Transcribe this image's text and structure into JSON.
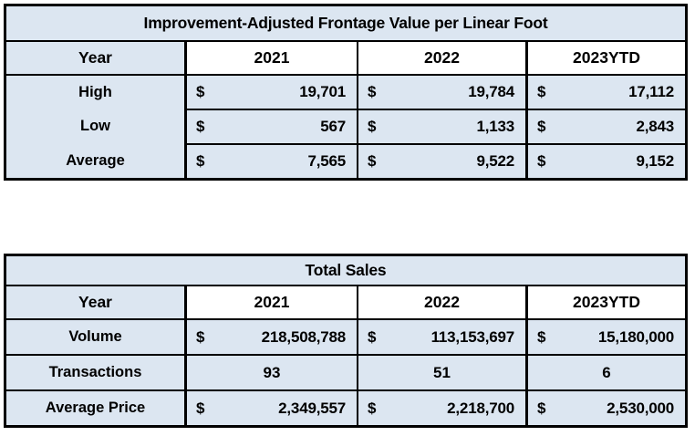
{
  "colors": {
    "cell_fill": "#dce6f1",
    "year_fill": "#ffffff",
    "border_color": "#000000",
    "text_color": "#000000",
    "page_bg": "#ffffff"
  },
  "tables": [
    {
      "title": "Improvement-Adjusted Frontage Value per Linear Foot",
      "columns": [
        "Year",
        "2021",
        "2022",
        "2023YTD"
      ],
      "rows": [
        {
          "label": "High",
          "cells": [
            {
              "prefix": "$",
              "value": "19,701"
            },
            {
              "prefix": "$",
              "value": "19,784"
            },
            {
              "prefix": "$",
              "value": "17,112"
            }
          ]
        },
        {
          "label": "Low",
          "cells": [
            {
              "prefix": "$",
              "value": "567"
            },
            {
              "prefix": "$",
              "value": "1,133"
            },
            {
              "prefix": "$",
              "value": "2,843"
            }
          ]
        },
        {
          "label": "Average",
          "cells": [
            {
              "prefix": "$",
              "value": "7,565"
            },
            {
              "prefix": "$",
              "value": "9,522"
            },
            {
              "prefix": "$",
              "value": "9,152"
            }
          ]
        }
      ]
    },
    {
      "title": "Total Sales",
      "columns": [
        "Year",
        "2021",
        "2022",
        "2023YTD"
      ],
      "rows": [
        {
          "label": "Volume",
          "cells": [
            {
              "prefix": "$",
              "value": "218,508,788"
            },
            {
              "prefix": "$",
              "value": "113,153,697"
            },
            {
              "prefix": "$",
              "value": "15,180,000"
            }
          ]
        },
        {
          "label": "Transactions",
          "cells": [
            {
              "value": "93"
            },
            {
              "value": "51"
            },
            {
              "value": "6"
            }
          ]
        },
        {
          "label": "Average Price",
          "cells": [
            {
              "prefix": "$",
              "value": "2,349,557"
            },
            {
              "prefix": "$",
              "value": "2,218,700"
            },
            {
              "prefix": "$",
              "value": "2,530,000"
            }
          ]
        }
      ]
    }
  ]
}
